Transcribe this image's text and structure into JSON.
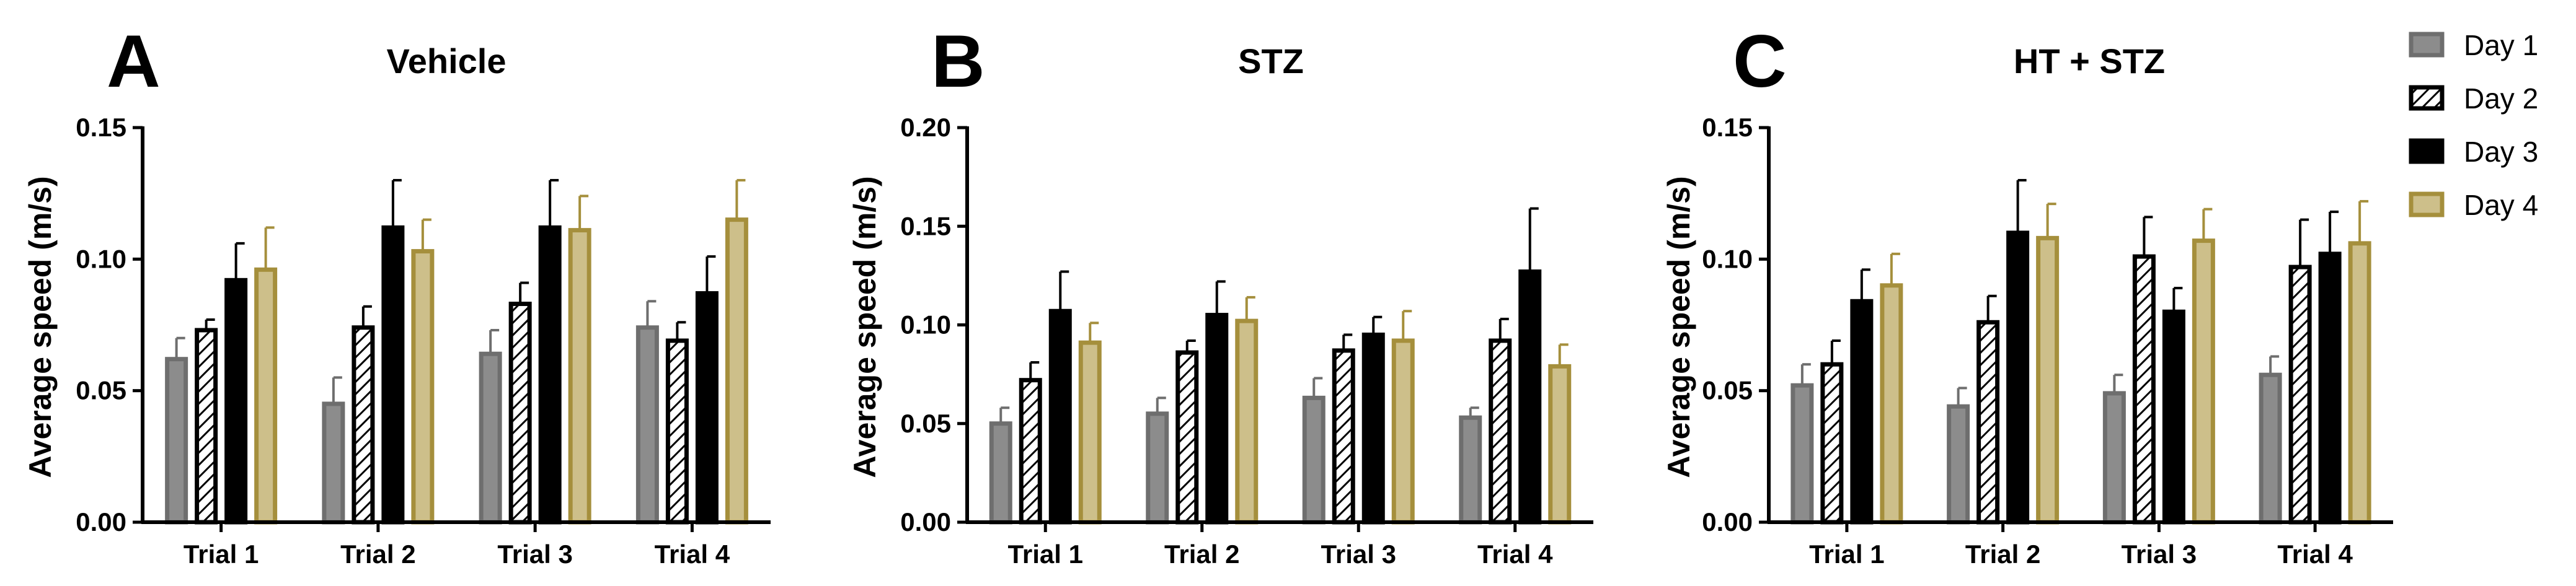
{
  "chart_data": [
    {
      "type": "bar",
      "panel_label": "A",
      "title": "Vehicle",
      "ylabel": "Average speed (m/s)",
      "xlabel": "",
      "ylim": [
        0,
        0.15
      ],
      "yticks": [
        0.0,
        0.05,
        0.1,
        0.15
      ],
      "ytick_labels": [
        "0.00",
        "0.05",
        "0.10",
        "0.15"
      ],
      "categories": [
        "Trial 1",
        "Trial 2",
        "Trial 3",
        "Trial 4"
      ],
      "series": [
        {
          "name": "Day 1",
          "values": [
            0.062,
            0.045,
            0.064,
            0.074
          ],
          "errors": [
            0.008,
            0.01,
            0.009,
            0.01
          ]
        },
        {
          "name": "Day 2",
          "values": [
            0.073,
            0.074,
            0.083,
            0.069
          ],
          "errors": [
            0.004,
            0.008,
            0.008,
            0.007
          ]
        },
        {
          "name": "Day 3",
          "values": [
            0.092,
            0.112,
            0.112,
            0.087
          ],
          "errors": [
            0.014,
            0.018,
            0.018,
            0.014
          ]
        },
        {
          "name": "Day 4",
          "values": [
            0.096,
            0.103,
            0.111,
            0.115
          ],
          "errors": [
            0.016,
            0.012,
            0.013,
            0.015
          ]
        }
      ]
    },
    {
      "type": "bar",
      "panel_label": "B",
      "title": "STZ",
      "ylabel": "Average speed (m/s)",
      "xlabel": "",
      "ylim": [
        0,
        0.2
      ],
      "yticks": [
        0.0,
        0.05,
        0.1,
        0.15,
        0.2
      ],
      "ytick_labels": [
        "0.00",
        "0.05",
        "0.10",
        "0.15",
        "0.20"
      ],
      "categories": [
        "Trial 1",
        "Trial 2",
        "Trial 3",
        "Trial 4"
      ],
      "series": [
        {
          "name": "Day 1",
          "values": [
            0.05,
            0.055,
            0.063,
            0.053
          ],
          "errors": [
            0.008,
            0.008,
            0.01,
            0.005
          ]
        },
        {
          "name": "Day 2",
          "values": [
            0.072,
            0.086,
            0.087,
            0.092
          ],
          "errors": [
            0.009,
            0.006,
            0.008,
            0.011
          ]
        },
        {
          "name": "Day 3",
          "values": [
            0.107,
            0.105,
            0.095,
            0.127
          ],
          "errors": [
            0.02,
            0.017,
            0.009,
            0.032
          ]
        },
        {
          "name": "Day 4",
          "values": [
            0.091,
            0.102,
            0.092,
            0.079
          ],
          "errors": [
            0.01,
            0.012,
            0.015,
            0.011
          ]
        }
      ]
    },
    {
      "type": "bar",
      "panel_label": "C",
      "title": "HT + STZ",
      "ylabel": "Average speed (m/s)",
      "xlabel": "",
      "ylim": [
        0,
        0.15
      ],
      "yticks": [
        0.0,
        0.05,
        0.1,
        0.15
      ],
      "ytick_labels": [
        "0.00",
        "0.05",
        "0.10",
        "0.15"
      ],
      "categories": [
        "Trial 1",
        "Trial 2",
        "Trial 3",
        "Trial 4"
      ],
      "series": [
        {
          "name": "Day 1",
          "values": [
            0.052,
            0.044,
            0.049,
            0.056
          ],
          "errors": [
            0.008,
            0.007,
            0.007,
            0.007
          ]
        },
        {
          "name": "Day 2",
          "values": [
            0.06,
            0.076,
            0.101,
            0.097
          ],
          "errors": [
            0.009,
            0.01,
            0.015,
            0.018
          ]
        },
        {
          "name": "Day 3",
          "values": [
            0.084,
            0.11,
            0.08,
            0.102
          ],
          "errors": [
            0.012,
            0.02,
            0.009,
            0.016
          ]
        },
        {
          "name": "Day 4",
          "values": [
            0.09,
            0.108,
            0.107,
            0.106
          ],
          "errors": [
            0.012,
            0.013,
            0.012,
            0.016
          ]
        }
      ]
    }
  ],
  "legend": {
    "position": "right",
    "items": [
      {
        "label": "Day 1",
        "style": "gray"
      },
      {
        "label": "Day 2",
        "style": "hatched"
      },
      {
        "label": "Day 3",
        "style": "black"
      },
      {
        "label": "Day 4",
        "style": "gold"
      }
    ]
  },
  "colors": {
    "day1_fill": "#8c8c8c",
    "day1_stroke": "#6e6e6e",
    "day2_fill": "#ffffff",
    "day2_stroke": "#000000",
    "day3_fill": "#000000",
    "day3_stroke": "#000000",
    "day4_fill": "#cdbf8a",
    "day4_stroke": "#a58f3c",
    "axis": "#000000"
  }
}
